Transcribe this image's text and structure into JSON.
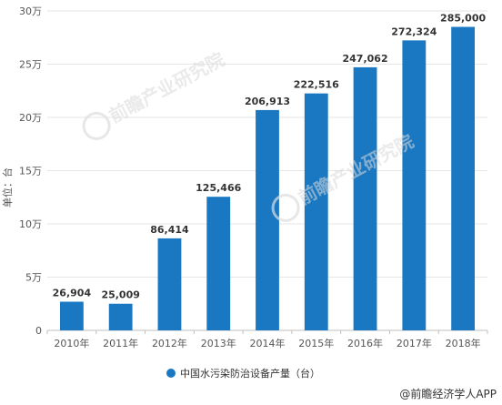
{
  "chart_data": {
    "type": "bar",
    "categories": [
      "2010年",
      "2011年",
      "2012年",
      "2013年",
      "2014年",
      "2015年",
      "2016年",
      "2017年",
      "2018年"
    ],
    "series": [
      {
        "name": "中国水污染防治设备产量（台）",
        "values": [
          26904,
          25009,
          86414,
          125466,
          206913,
          222516,
          247062,
          272324,
          285000
        ],
        "color": "#1a78c2"
      }
    ],
    "data_labels": [
      "26,904",
      "25,009",
      "86,414",
      "125,466",
      "206,913",
      "222,516",
      "247,062",
      "272,324",
      "285,000"
    ],
    "ylabel": "单位：台",
    "ylim": [
      0,
      300000
    ],
    "yticks": [
      0,
      50000,
      100000,
      150000,
      200000,
      250000,
      300000
    ],
    "ytick_labels": [
      "0",
      "5万",
      "10万",
      "15万",
      "20万",
      "25万",
      "30万"
    ],
    "grid": true,
    "legend_position": "bottom"
  },
  "watermark": {
    "brand": "前瞻产业研究院"
  },
  "source": {
    "text": "@前瞻经济学人APP"
  }
}
